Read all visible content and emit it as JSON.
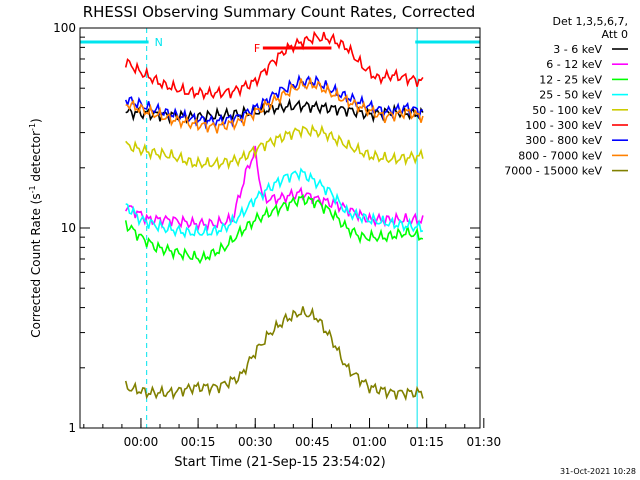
{
  "chart_data": {
    "type": "line",
    "title": "RHESSI Observing Summary Count Rates, Corrected",
    "xlabel": "Start Time (21-Sep-15 23:54:02)",
    "ylabel": "Corrected Count Rate (s",
    "ylabel_sup1": "-1",
    "ylabel_mid": " detector",
    "ylabel_sup2": "-1",
    "ylabel_end": ")",
    "yscale": "log",
    "ylim": [
      1,
      100
    ],
    "yticks": [
      "1",
      "10",
      "100"
    ],
    "xlim_minutes": [
      -10,
      95
    ],
    "xticks": [
      {
        "label": "00:00",
        "min": 6
      },
      {
        "label": "00:15",
        "min": 21
      },
      {
        "label": "00:30",
        "min": 36
      },
      {
        "label": "00:45",
        "min": 51
      },
      {
        "label": "01:00",
        "min": 66
      },
      {
        "label": "01:15",
        "min": 81
      },
      {
        "label": "01:30",
        "min": 96
      }
    ],
    "detector_header": "Det 1,3,5,6,7,",
    "attenuator_header": "Att 0",
    "flags": [
      {
        "label": "N",
        "color": "#00e5ee",
        "segments": [
          [
            -10,
            8
          ],
          [
            78,
            95
          ]
        ]
      },
      {
        "label": "F",
        "color": "#ff0000",
        "segments": [
          [
            38,
            56
          ]
        ]
      }
    ],
    "night_lines_min": [
      -10,
      7.5,
      78.5,
      95
    ],
    "series": [
      {
        "name": "3 - 6 keV",
        "color": "#000000",
        "points": [
          [
            2,
            38
          ],
          [
            10,
            37
          ],
          [
            20,
            36
          ],
          [
            30,
            37
          ],
          [
            36,
            38
          ],
          [
            42,
            40
          ],
          [
            48,
            41
          ],
          [
            54,
            40
          ],
          [
            60,
            39
          ],
          [
            66,
            37
          ],
          [
            72,
            38
          ],
          [
            80,
            37
          ]
        ]
      },
      {
        "name": "6 - 12 keV",
        "color": "#ff00ff",
        "points": [
          [
            2,
            13
          ],
          [
            8,
            11
          ],
          [
            14,
            11
          ],
          [
            20,
            10.5
          ],
          [
            26,
            10.5
          ],
          [
            30,
            11
          ],
          [
            34,
            20
          ],
          [
            36,
            24
          ],
          [
            38,
            14
          ],
          [
            42,
            14
          ],
          [
            48,
            15
          ],
          [
            52,
            14
          ],
          [
            58,
            13
          ],
          [
            66,
            11
          ],
          [
            72,
            11
          ],
          [
            80,
            11
          ]
        ]
      },
      {
        "name": "12 - 25 keV",
        "color": "#00ff00",
        "points": [
          [
            2,
            10.5
          ],
          [
            6,
            9
          ],
          [
            10,
            8
          ],
          [
            16,
            7.5
          ],
          [
            22,
            7
          ],
          [
            28,
            8
          ],
          [
            32,
            9.5
          ],
          [
            36,
            11
          ],
          [
            40,
            12
          ],
          [
            44,
            13
          ],
          [
            48,
            14
          ],
          [
            52,
            13.5
          ],
          [
            56,
            12
          ],
          [
            60,
            10
          ],
          [
            64,
            9
          ],
          [
            70,
            9
          ],
          [
            76,
            9.5
          ],
          [
            80,
            9
          ]
        ]
      },
      {
        "name": "25 - 50 keV",
        "color": "#00ffff",
        "points": [
          [
            2,
            13
          ],
          [
            6,
            11
          ],
          [
            12,
            10
          ],
          [
            18,
            9.5
          ],
          [
            24,
            9.5
          ],
          [
            28,
            10
          ],
          [
            32,
            11.5
          ],
          [
            36,
            14
          ],
          [
            40,
            16
          ],
          [
            44,
            18
          ],
          [
            48,
            19
          ],
          [
            52,
            17
          ],
          [
            56,
            15
          ],
          [
            60,
            12
          ],
          [
            66,
            11
          ],
          [
            72,
            10.5
          ],
          [
            80,
            10
          ]
        ]
      },
      {
        "name": "50 - 100 keV",
        "color": "#cccc00",
        "points": [
          [
            2,
            26
          ],
          [
            8,
            24
          ],
          [
            14,
            23
          ],
          [
            20,
            21
          ],
          [
            26,
            21
          ],
          [
            32,
            22
          ],
          [
            38,
            26
          ],
          [
            44,
            29
          ],
          [
            48,
            31
          ],
          [
            54,
            30
          ],
          [
            60,
            26
          ],
          [
            66,
            23
          ],
          [
            72,
            22
          ],
          [
            80,
            23
          ]
        ]
      },
      {
        "name": "100 - 300 keV",
        "color": "#ff0000",
        "points": [
          [
            2,
            68
          ],
          [
            6,
            60
          ],
          [
            12,
            52
          ],
          [
            18,
            48
          ],
          [
            24,
            47
          ],
          [
            30,
            48
          ],
          [
            36,
            54
          ],
          [
            40,
            66
          ],
          [
            44,
            78
          ],
          [
            48,
            85
          ],
          [
            52,
            90
          ],
          [
            56,
            88
          ],
          [
            60,
            80
          ],
          [
            64,
            65
          ],
          [
            68,
            56
          ],
          [
            72,
            58
          ],
          [
            76,
            56
          ],
          [
            80,
            54
          ]
        ]
      },
      {
        "name": "300 - 800 keV",
        "color": "#0000ff",
        "points": [
          [
            2,
            44
          ],
          [
            8,
            40
          ],
          [
            14,
            37
          ],
          [
            20,
            35
          ],
          [
            26,
            34
          ],
          [
            32,
            36
          ],
          [
            38,
            42
          ],
          [
            42,
            48
          ],
          [
            48,
            54
          ],
          [
            52,
            54
          ],
          [
            58,
            47
          ],
          [
            64,
            42
          ],
          [
            70,
            38
          ],
          [
            76,
            40
          ],
          [
            80,
            38
          ]
        ]
      },
      {
        "name": "800 - 7000 keV",
        "color": "#ff8000",
        "points": [
          [
            2,
            42
          ],
          [
            8,
            38
          ],
          [
            14,
            35
          ],
          [
            20,
            33
          ],
          [
            26,
            32
          ],
          [
            32,
            34
          ],
          [
            38,
            40
          ],
          [
            44,
            47
          ],
          [
            48,
            52
          ],
          [
            52,
            52
          ],
          [
            58,
            45
          ],
          [
            64,
            40
          ],
          [
            70,
            36
          ],
          [
            76,
            38
          ],
          [
            80,
            36
          ]
        ]
      },
      {
        "name": "7000 - 15000 keV",
        "color": "#808000",
        "points": [
          [
            2,
            1.6
          ],
          [
            8,
            1.5
          ],
          [
            14,
            1.5
          ],
          [
            20,
            1.6
          ],
          [
            26,
            1.6
          ],
          [
            32,
            1.8
          ],
          [
            36,
            2.4
          ],
          [
            40,
            3.0
          ],
          [
            44,
            3.5
          ],
          [
            48,
            3.8
          ],
          [
            52,
            3.6
          ],
          [
            56,
            2.8
          ],
          [
            60,
            2.0
          ],
          [
            66,
            1.6
          ],
          [
            72,
            1.5
          ],
          [
            80,
            1.5
          ]
        ]
      }
    ]
  },
  "footer": {
    "timestamp": "31-Oct-2021 10:28"
  }
}
